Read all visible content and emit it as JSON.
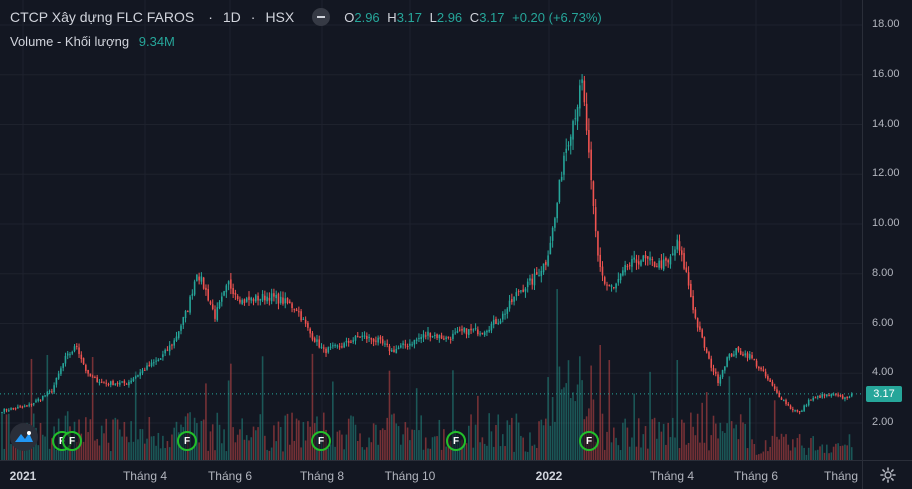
{
  "header": {
    "symbol": "CTCP Xây dựng FLC FAROS",
    "separator": "·",
    "timeframe": "1D",
    "exchange": "HSX",
    "ohlc": {
      "o_label": "O",
      "o": "2.96",
      "h_label": "H",
      "h": "3.17",
      "l_label": "L",
      "l": "2.96",
      "c_label": "C",
      "c": "3.17",
      "change": "+0.20 (+6.73%)"
    }
  },
  "volume_legend": {
    "label": "Volume - Khối lượng",
    "value": "9.34M"
  },
  "last_price": "3.17",
  "event_marker_label": "F",
  "icons": {
    "hide": "minus-icon",
    "settings": "gear-icon",
    "logo": "tradingview-logo-icon"
  },
  "colors": {
    "background": "#131722",
    "up": "#26a69a",
    "down": "#ef5350",
    "events": "#22c02a"
  },
  "chart_data": {
    "type": "candlestick",
    "y_ticks": [
      "18.00",
      "16.00",
      "14.00",
      "12.00",
      "10.00",
      "8.00",
      "6.00",
      "4.00",
      "2.00"
    ],
    "y_tick_values": [
      18,
      16,
      14,
      12,
      10,
      8,
      6,
      4,
      2
    ],
    "x_ticks": [
      "2021",
      "Tháng 4",
      "Tháng 6",
      "Tháng 8",
      "Tháng 10",
      "2022",
      "Tháng 4",
      "Tháng 6",
      "Tháng"
    ],
    "price_keypoints": [
      [
        0,
        2.5
      ],
      [
        12,
        2.7
      ],
      [
        22,
        3.3
      ],
      [
        28,
        4.6
      ],
      [
        33,
        5.1
      ],
      [
        38,
        3.9
      ],
      [
        45,
        3.6
      ],
      [
        55,
        3.6
      ],
      [
        62,
        4.1
      ],
      [
        70,
        4.6
      ],
      [
        76,
        5.3
      ],
      [
        82,
        6.6
      ],
      [
        86,
        8.1
      ],
      [
        90,
        7.3
      ],
      [
        94,
        6.3
      ],
      [
        100,
        7.6
      ],
      [
        106,
        6.9
      ],
      [
        112,
        7.0
      ],
      [
        118,
        7.1
      ],
      [
        124,
        6.9
      ],
      [
        130,
        6.6
      ],
      [
        136,
        5.6
      ],
      [
        142,
        4.9
      ],
      [
        150,
        5.1
      ],
      [
        158,
        5.5
      ],
      [
        166,
        5.3
      ],
      [
        172,
        4.9
      ],
      [
        180,
        5.2
      ],
      [
        188,
        5.6
      ],
      [
        196,
        5.4
      ],
      [
        204,
        5.7
      ],
      [
        212,
        5.7
      ],
      [
        220,
        6.2
      ],
      [
        228,
        7.3
      ],
      [
        234,
        7.7
      ],
      [
        240,
        8.5
      ],
      [
        244,
        10.2
      ],
      [
        248,
        12.8
      ],
      [
        252,
        14.2
      ],
      [
        256,
        15.6
      ],
      [
        258,
        13.8
      ],
      [
        260,
        11.5
      ],
      [
        263,
        8.7
      ],
      [
        266,
        7.6
      ],
      [
        270,
        7.4
      ],
      [
        276,
        8.3
      ],
      [
        282,
        8.6
      ],
      [
        288,
        8.4
      ],
      [
        294,
        8.4
      ],
      [
        298,
        9.2
      ],
      [
        302,
        8.0
      ],
      [
        306,
        6.2
      ],
      [
        312,
        4.5
      ],
      [
        316,
        3.7
      ],
      [
        320,
        4.6
      ],
      [
        324,
        4.9
      ],
      [
        330,
        4.7
      ],
      [
        336,
        4.0
      ],
      [
        342,
        3.2
      ],
      [
        348,
        2.6
      ],
      [
        352,
        2.4
      ],
      [
        356,
        2.9
      ],
      [
        362,
        3.1
      ],
      [
        368,
        3.1
      ],
      [
        372,
        3.0
      ],
      [
        375,
        3.17
      ]
    ],
    "total_bars": 376,
    "event_markers": [
      "F",
      "F",
      "F",
      "F",
      "F",
      "F"
    ]
  }
}
